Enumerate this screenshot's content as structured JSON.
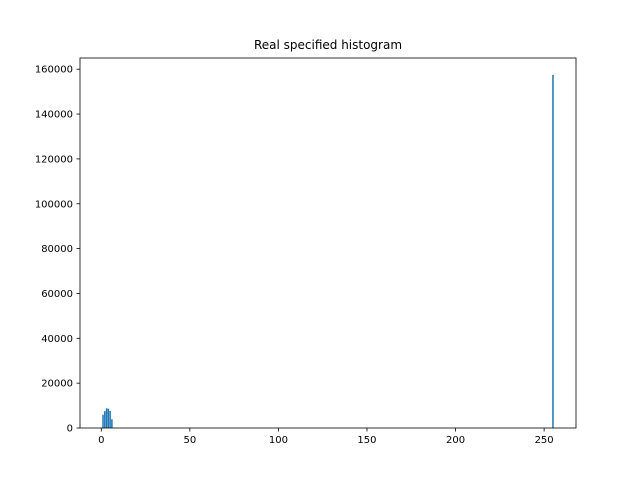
{
  "chart_data": {
    "type": "bar",
    "title": "Real specified histogram",
    "xlabel": "",
    "ylabel": "",
    "xlim": [
      -12,
      268
    ],
    "ylim": [
      0,
      165000
    ],
    "grid": false,
    "legend": "none",
    "bar_color": "#1f77b4",
    "x_ticks": [
      0,
      50,
      100,
      150,
      200,
      250
    ],
    "y_ticks": [
      0,
      20000,
      40000,
      60000,
      80000,
      100000,
      120000,
      140000,
      160000
    ],
    "x": [
      1,
      2,
      3,
      4,
      5,
      6,
      255
    ],
    "values": [
      5900,
      7500,
      8800,
      8600,
      7600,
      3900,
      157500
    ]
  }
}
